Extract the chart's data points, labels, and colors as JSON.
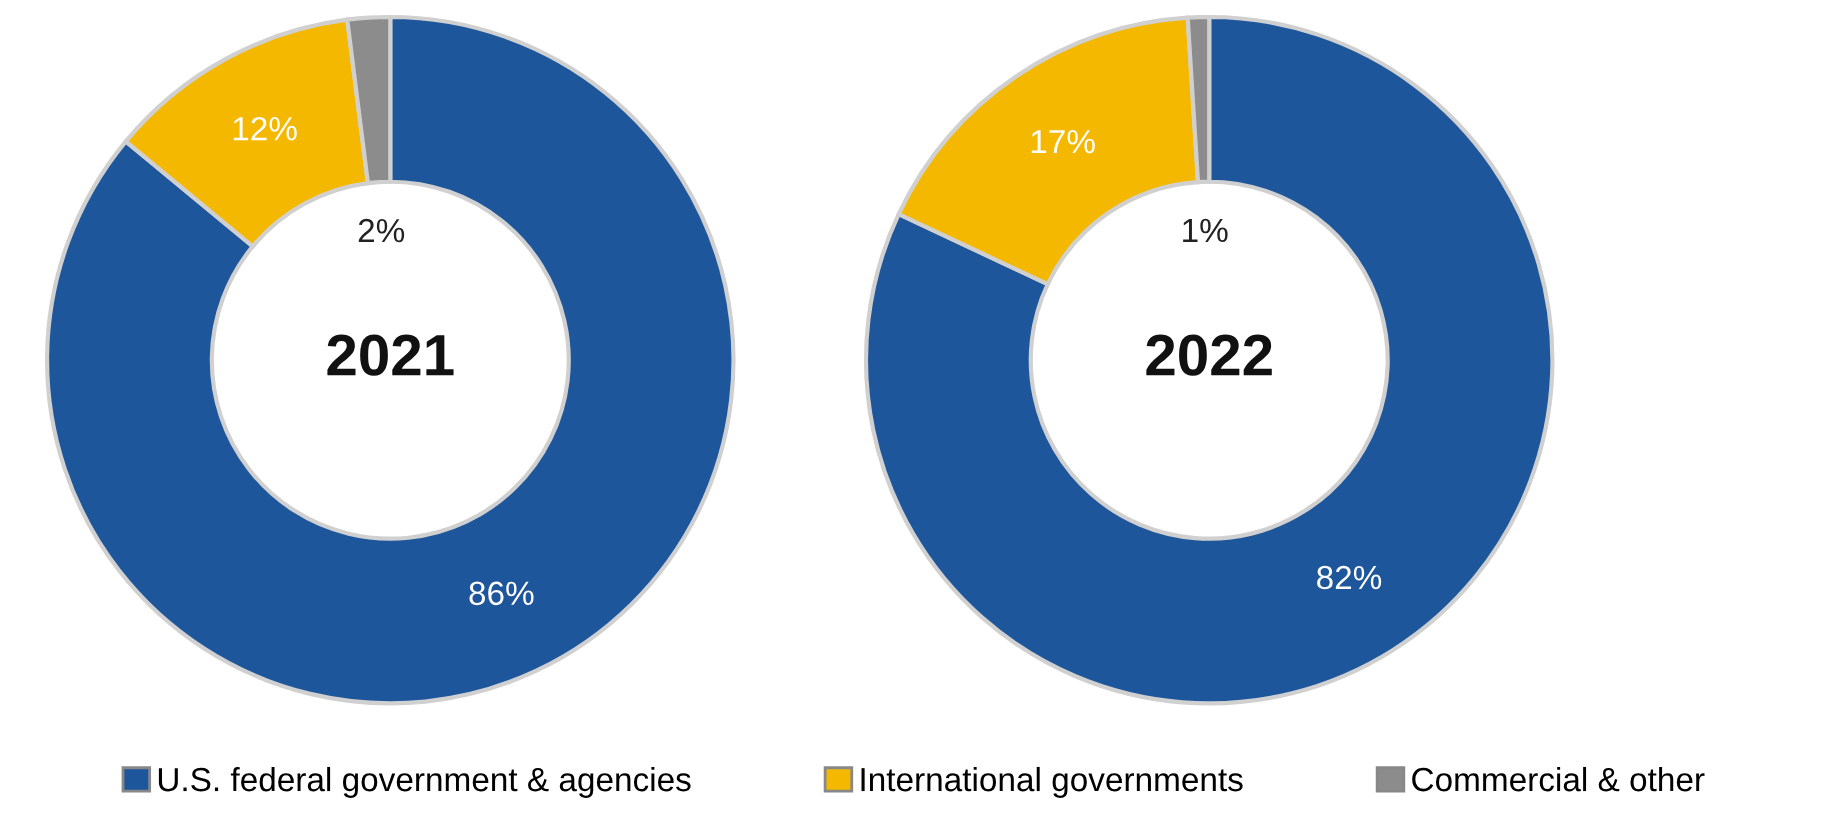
{
  "chart_data": [
    {
      "type": "donut",
      "title": "2021",
      "categories": [
        "U.S. federal government & agencies",
        "International governments",
        "Commercial & other"
      ],
      "values": [
        86,
        12,
        2
      ],
      "value_labels": [
        "86%",
        "12%",
        "2%"
      ],
      "colors": [
        "#1e569c",
        "#f5b800",
        "#8c8c8c"
      ],
      "legend": "bottom"
    },
    {
      "type": "donut",
      "title": "2022",
      "categories": [
        null,
        null,
        null
      ],
      "values": [
        82,
        17,
        1
      ],
      "value_labels": [
        "82%",
        "17%",
        "1%"
      ],
      "colors": [
        "#1e569c",
        "#f5b800",
        "#8c8c8c"
      ]
    }
  ]
}
